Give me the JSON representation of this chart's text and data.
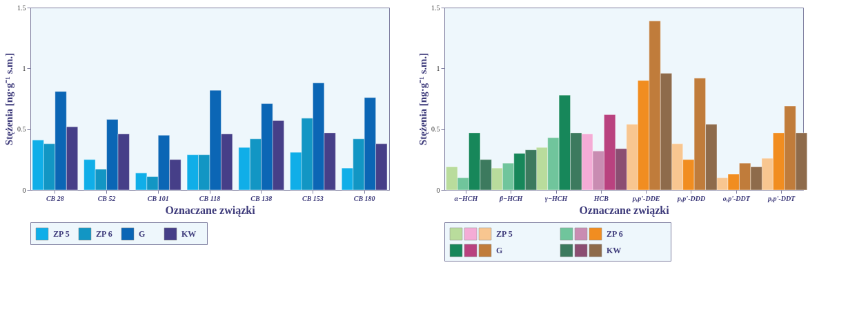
{
  "chart_data": [
    {
      "type": "bar",
      "xlabel": "Oznaczane związki",
      "ylabel": "Stężenia  [ng·g⁻¹ s.m.]",
      "categories": [
        "CB 28",
        "CB 52",
        "CB 101",
        "CB 118",
        "CB 138",
        "CB 153",
        "CB 180"
      ],
      "series": [
        {
          "name": "ZP 5",
          "color": "#10aee8",
          "values": [
            0.41,
            0.25,
            0.14,
            0.29,
            0.35,
            0.31,
            0.18
          ]
        },
        {
          "name": "ZP 6",
          "color": "#1296c4",
          "values": [
            0.38,
            0.17,
            0.11,
            0.29,
            0.42,
            0.59,
            0.42
          ]
        },
        {
          "name": "G",
          "color": "#0b66b5",
          "values": [
            0.81,
            0.58,
            0.45,
            0.82,
            0.71,
            0.88,
            0.76
          ]
        },
        {
          "name": "KW",
          "color": "#463f88",
          "values": [
            0.52,
            0.46,
            0.25,
            0.46,
            0.57,
            0.47,
            0.38
          ]
        }
      ],
      "ylim": [
        0,
        1.5
      ],
      "yticks": [
        0,
        0.5,
        1,
        1.5
      ],
      "legend": "bottom left"
    },
    {
      "type": "bar",
      "xlabel": "Oznaczane związki",
      "ylabel": "Stężenia  [ng·g⁻¹ s.m.]",
      "categories": [
        "α−HCH",
        "β−HCH",
        "γ−HCH",
        "HCB",
        "p,p'-DDE",
        "p,p'-DDD",
        "o,p'-DDT",
        "p,p'-DDT"
      ],
      "series": [
        {
          "name": "ZP 5",
          "colors": [
            "#b9dc9c",
            "#b9dc9c",
            "#b9dc9c",
            "#f4acd6",
            "#f8c690",
            "#f8c690",
            "#f8c690",
            "#f8c690"
          ],
          "values": [
            0.19,
            0.18,
            0.35,
            0.46,
            0.54,
            0.38,
            0.1,
            0.26
          ]
        },
        {
          "name": "ZP 6",
          "colors": [
            "#70c59c",
            "#70c59c",
            "#70c59c",
            "#c98cb2",
            "#f18d20",
            "#f18d20",
            "#f18d20",
            "#f18d20"
          ],
          "values": [
            0.1,
            0.22,
            0.43,
            0.32,
            0.9,
            0.25,
            0.13,
            0.47
          ]
        },
        {
          "name": "G",
          "colors": [
            "#17875a",
            "#17875a",
            "#17875a",
            "#b9427f",
            "#c07c3b",
            "#c07c3b",
            "#c07c3b",
            "#c07c3b"
          ],
          "values": [
            0.47,
            0.3,
            0.78,
            0.62,
            1.39,
            0.92,
            0.22,
            0.69
          ]
        },
        {
          "name": "KW",
          "colors": [
            "#3c7a5e",
            "#3c7a5e",
            "#3c7a5e",
            "#8b4e72",
            "#8e6b4b",
            "#8e6b4b",
            "#8e6b4b",
            "#8e6b4b"
          ],
          "values": [
            0.25,
            0.33,
            0.47,
            0.34,
            0.96,
            0.54,
            0.19,
            0.47
          ]
        }
      ],
      "ylim": [
        0,
        1.5
      ],
      "yticks": [
        0,
        0.5,
        1,
        1.5
      ],
      "legend": "bottom left"
    }
  ]
}
